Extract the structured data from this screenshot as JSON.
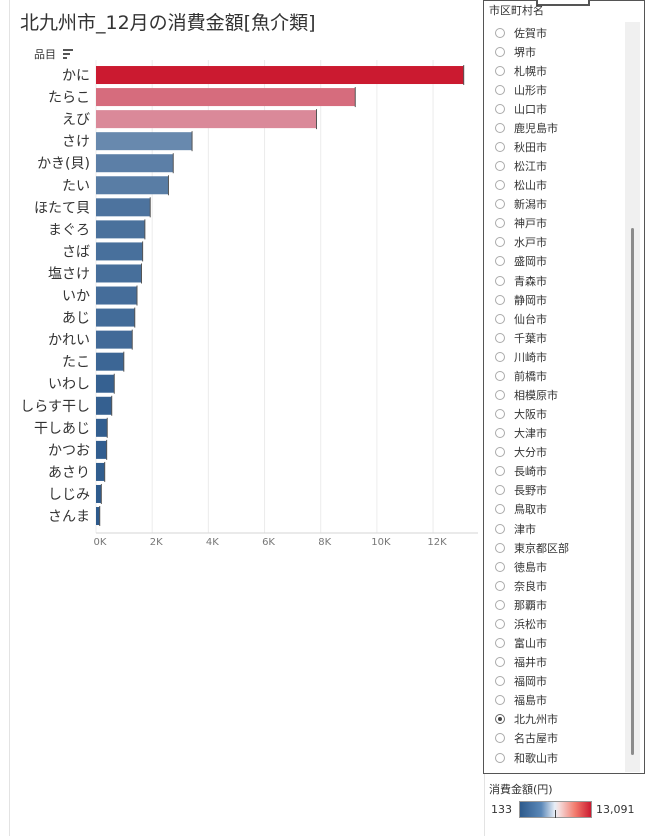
{
  "title": "北九州市_12月の消費金額[魚介類]",
  "chart_data": {
    "type": "bar",
    "orientation": "horizontal",
    "dimension_label": "品目",
    "categories": [
      "かに",
      "たらこ",
      "えび",
      "さけ",
      "かき(貝)",
      "たい",
      "ほたて貝",
      "まぐろ",
      "さば",
      "塩さけ",
      "いか",
      "あじ",
      "かれい",
      "たこ",
      "いわし",
      "しらす干し",
      "干しあじ",
      "かつお",
      "あさり",
      "しじみ",
      "さんま"
    ],
    "values": [
      13091,
      9230,
      7850,
      3420,
      2750,
      2580,
      1930,
      1740,
      1660,
      1620,
      1460,
      1380,
      1290,
      990,
      650,
      560,
      400,
      380,
      310,
      190,
      133
    ],
    "x_ticks": [
      0,
      2000,
      4000,
      6000,
      8000,
      10000,
      12000
    ],
    "x_tick_labels": [
      "0K",
      "2K",
      "4K",
      "6K",
      "8K",
      "10K",
      "12K"
    ],
    "xlim": [
      0,
      13600
    ],
    "color_scale": {
      "label": "消費金額(円)",
      "min": "133",
      "max": "13,091",
      "colors": [
        "#2d5a8c",
        "#e7eef7",
        "#cb1a30"
      ]
    }
  },
  "filter": {
    "title": "市区町村名",
    "selected": "北九州市",
    "items": [
      "佐賀市",
      "堺市",
      "札幌市",
      "山形市",
      "山口市",
      "鹿児島市",
      "秋田市",
      "松江市",
      "松山市",
      "新潟市",
      "神戸市",
      "水戸市",
      "盛岡市",
      "青森市",
      "静岡市",
      "仙台市",
      "千葉市",
      "川崎市",
      "前橋市",
      "相模原市",
      "大阪市",
      "大津市",
      "大分市",
      "長崎市",
      "長野市",
      "鳥取市",
      "津市",
      "東京都区部",
      "徳島市",
      "奈良市",
      "那覇市",
      "浜松市",
      "富山市",
      "福井市",
      "福岡市",
      "福島市",
      "北九州市",
      "名古屋市",
      "和歌山市"
    ]
  },
  "legend": {
    "title": "消費金額(円)",
    "min_label": "133",
    "max_label": "13,091"
  }
}
